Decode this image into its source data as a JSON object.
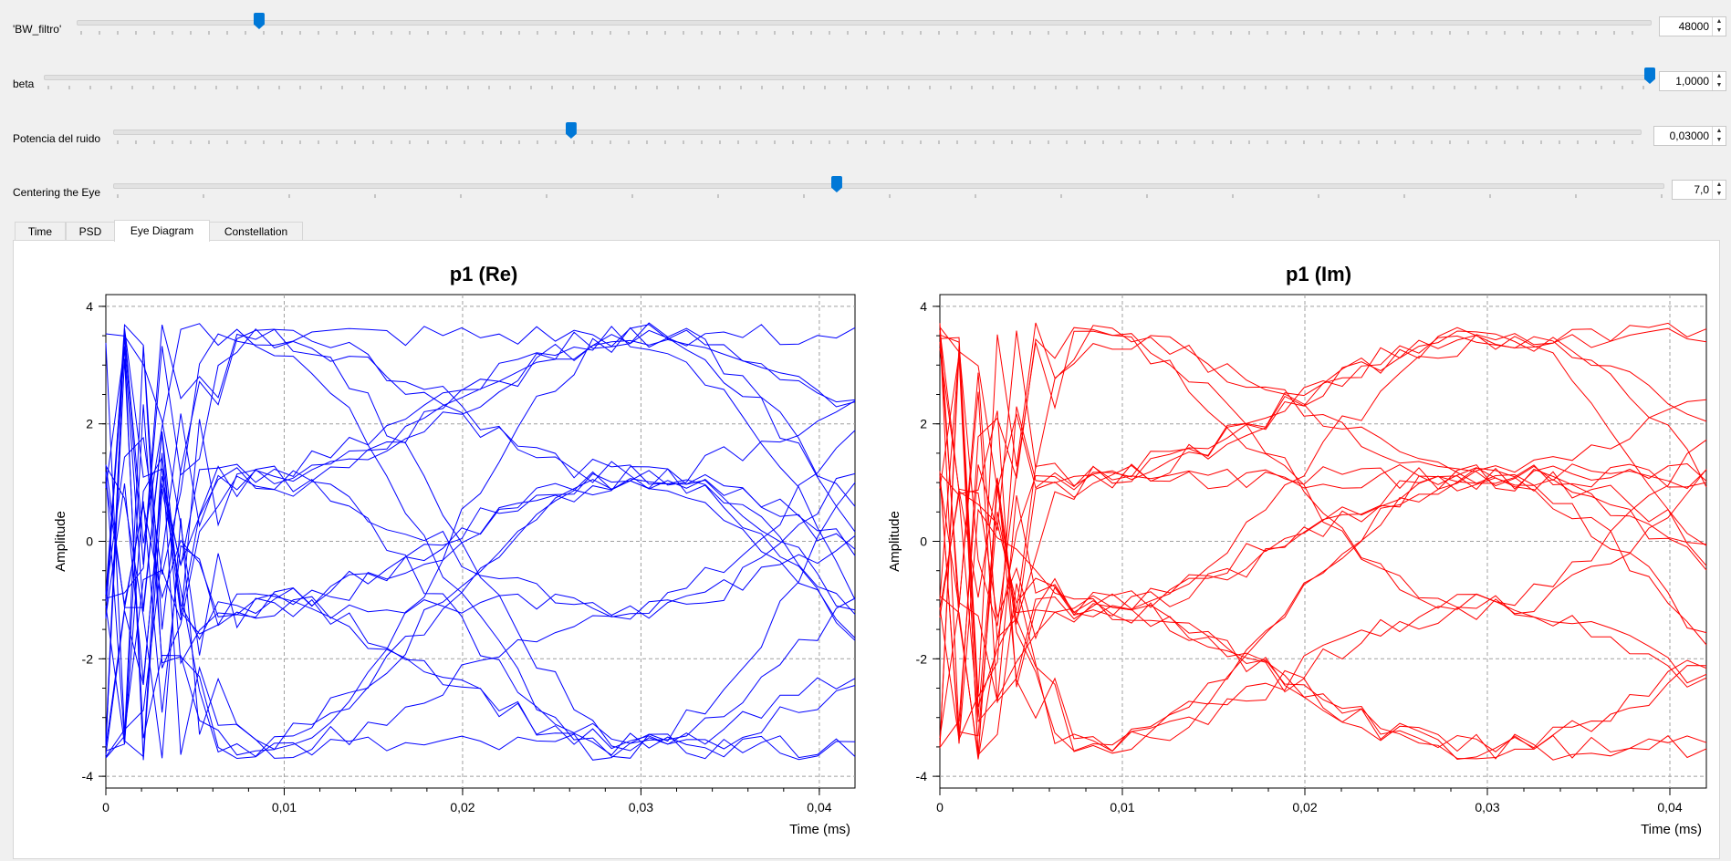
{
  "sliders": [
    {
      "id": "bw",
      "label": "'BW_filtro'",
      "value": "48000",
      "fraction": 0.116
    },
    {
      "id": "beta",
      "label": "beta",
      "value": "1,0000",
      "fraction": 1.0
    },
    {
      "id": "noise",
      "label": "Potencia del ruido",
      "value": "0,03000",
      "fraction": 0.3
    },
    {
      "id": "center",
      "label": "Centering the Eye",
      "value": "7,0",
      "fraction": 0.467
    }
  ],
  "tabs": [
    {
      "label": "Time",
      "active": false
    },
    {
      "label": "PSD",
      "active": false
    },
    {
      "label": "Eye Diagram",
      "active": true
    },
    {
      "label": "Constellation",
      "active": false
    }
  ],
  "plots": [
    {
      "title": "p1 (Re)",
      "ylabel": "Amplitude",
      "xlabel": "Time (ms)",
      "color": "#0000ff",
      "seed": 7
    },
    {
      "title": "p1 (Im)",
      "ylabel": "Amplitude",
      "xlabel": "Time (ms)",
      "color": "#ff0000",
      "seed": 19
    }
  ],
  "chart_data": {
    "type": "line",
    "xlim": [
      0,
      0.042
    ],
    "ylim": [
      -4.2,
      4.2
    ],
    "xticks": [
      "0",
      "0,01",
      "0,02",
      "0,03",
      "0,04"
    ],
    "yticks": [
      "4",
      "2",
      "0",
      "-2",
      "-4"
    ],
    "grid": true,
    "symbol_levels": [
      -3.5,
      -1.1,
      1.1,
      3.5
    ],
    "symbol_period_ms": 0.022,
    "trace_count": 22
  }
}
